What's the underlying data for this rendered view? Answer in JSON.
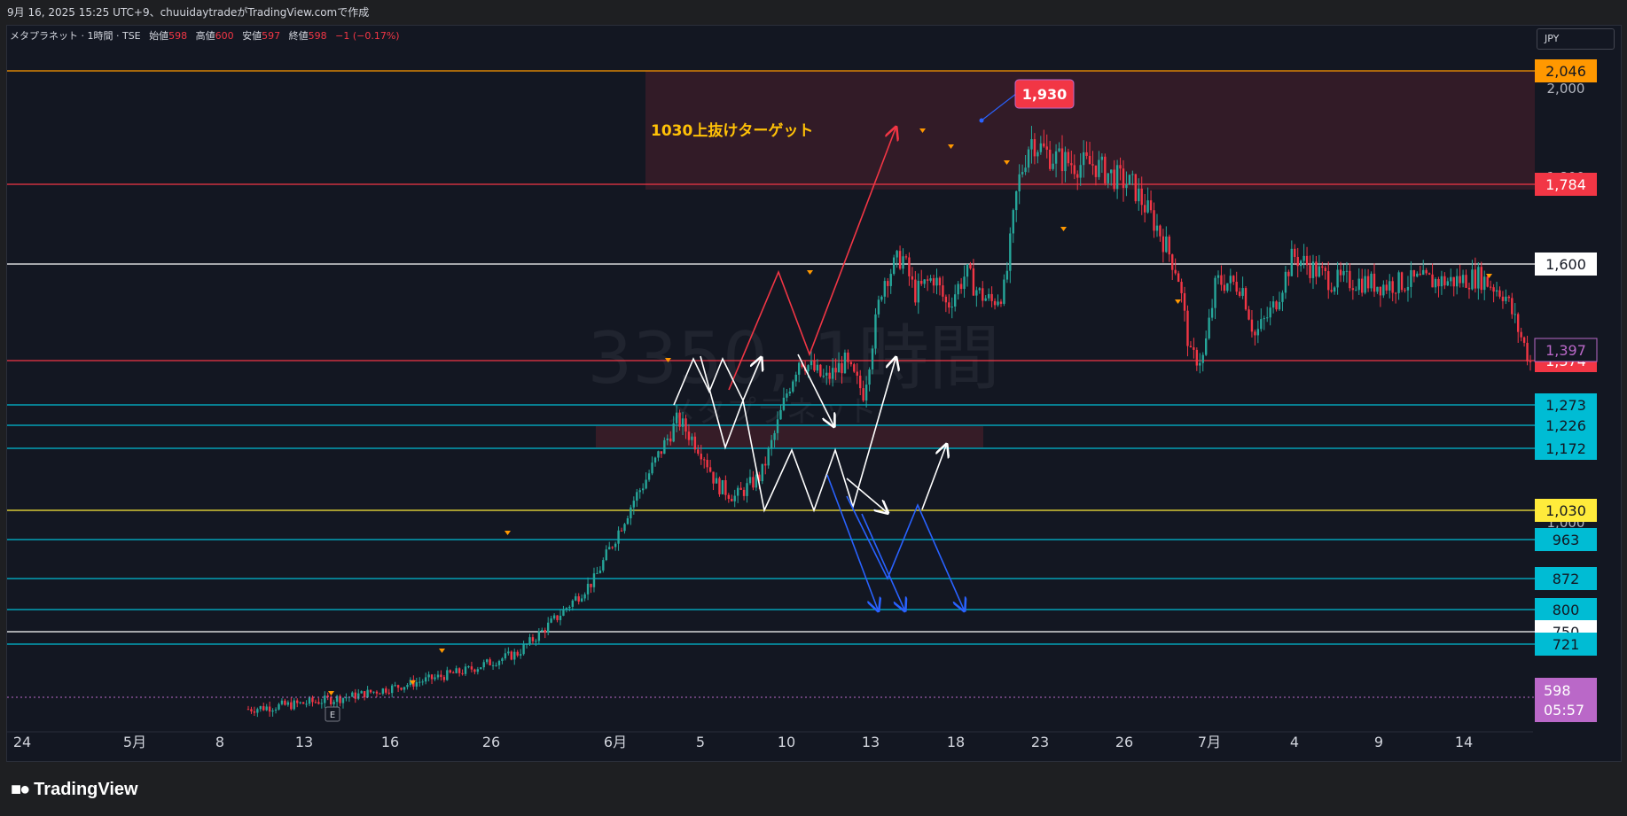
{
  "topbar": {
    "caption": "9月 16, 2025 15:25 UTC+9、chuuidaytradeがTradingView.comで作成"
  },
  "legend": {
    "symbol": "メタプラネット · 1時間 · TSE",
    "open_label": "始値",
    "open": "598",
    "high_label": "高値",
    "high": "600",
    "low_label": "安値",
    "low": "597",
    "close_label": "終値",
    "close": "598",
    "change": "−1 (−0.17%)"
  },
  "currency": "JPY",
  "watermark": {
    "line1": "3350, 1時間",
    "line2": "メタプラネット"
  },
  "annotation": {
    "target_text": "1030上抜けターゲット",
    "callout": "1,930"
  },
  "footer": {
    "logo_text": "TradingView"
  },
  "colors": {
    "background": "#131722",
    "up": "#26a69a",
    "down": "#f23645",
    "orange": "#ff9800",
    "cyan": "#00bcd4",
    "yellow": "#ffeb3b",
    "purple": "#ba68c8"
  },
  "chart_data": {
    "type": "candlestick",
    "y_axis": {
      "range": [
        520,
        2110
      ],
      "visible_ticks": [
        "2,000",
        "1,800",
        "1,000"
      ]
    },
    "x_axis": {
      "ticks": [
        "24",
        "5月",
        "8",
        "13",
        "16",
        "26",
        "6月",
        "5",
        "10",
        "13",
        "18",
        "23",
        "26",
        "7月",
        "4",
        "9",
        "14"
      ]
    },
    "price_lines": [
      {
        "label": "2,046",
        "value": 2046,
        "color": "#ff9800",
        "text_color": "#131722"
      },
      {
        "label": "1,784",
        "value": 1784,
        "color": "#f23645",
        "text_color": "#ffffff"
      },
      {
        "label": "1,600",
        "value": 1600,
        "color": "#ffffff",
        "text_color": "#131722"
      },
      {
        "label": "1,374",
        "value": 1374,
        "color": "#f23645",
        "text_color": "#ffffff"
      },
      {
        "label": "1,273",
        "value": 1273,
        "color": "#00bcd4",
        "text_color": "#131722"
      },
      {
        "label": "1,226",
        "value": 1226,
        "color": "#00bcd4",
        "text_color": "#131722"
      },
      {
        "label": "1,172",
        "value": 1172,
        "color": "#00bcd4",
        "text_color": "#131722"
      },
      {
        "label": "1,030",
        "value": 1030,
        "color": "#ffeb3b",
        "text_color": "#131722"
      },
      {
        "label": "963",
        "value": 963,
        "color": "#00bcd4",
        "text_color": "#131722"
      },
      {
        "label": "872",
        "value": 872,
        "color": "#00bcd4",
        "text_color": "#131722"
      },
      {
        "label": "800",
        "value": 800,
        "color": "#00bcd4",
        "text_color": "#131722"
      },
      {
        "label": "750",
        "value": 750,
        "color": "#ffffff",
        "text_color": "#131722"
      },
      {
        "label": "721",
        "value": 721,
        "color": "#00bcd4",
        "text_color": "#131722"
      }
    ],
    "marker_labels": [
      {
        "label": "1,397",
        "value": 1397,
        "color": "#ba68c8"
      }
    ],
    "last_price": {
      "value": "598",
      "countdown": "05:57",
      "color": "#ba68c8"
    },
    "price_path": [
      [
        0.0,
        575
      ],
      [
        0.04,
        585
      ],
      [
        0.08,
        600
      ],
      [
        0.12,
        625
      ],
      [
        0.17,
        660
      ],
      [
        0.21,
        700
      ],
      [
        0.24,
        780
      ],
      [
        0.27,
        870
      ],
      [
        0.3,
        1050
      ],
      [
        0.31,
        1100
      ],
      [
        0.335,
        1240
      ],
      [
        0.355,
        1160
      ],
      [
        0.365,
        1090
      ],
      [
        0.38,
        1060
      ],
      [
        0.4,
        1110
      ],
      [
        0.41,
        1200
      ],
      [
        0.42,
        1300
      ],
      [
        0.43,
        1380
      ],
      [
        0.45,
        1330
      ],
      [
        0.465,
        1370
      ],
      [
        0.48,
        1300
      ],
      [
        0.495,
        1560
      ],
      [
        0.51,
        1620
      ],
      [
        0.52,
        1530
      ],
      [
        0.535,
        1570
      ],
      [
        0.545,
        1500
      ],
      [
        0.56,
        1580
      ],
      [
        0.57,
        1530
      ],
      [
        0.58,
        1510
      ],
      [
        0.59,
        1540
      ],
      [
        0.6,
        1780
      ],
      [
        0.61,
        1890
      ],
      [
        0.625,
        1850
      ],
      [
        0.645,
        1830
      ],
      [
        0.66,
        1830
      ],
      [
        0.67,
        1810
      ],
      [
        0.69,
        1780
      ],
      [
        0.71,
        1680
      ],
      [
        0.725,
        1580
      ],
      [
        0.735,
        1380
      ],
      [
        0.745,
        1380
      ],
      [
        0.755,
        1560
      ],
      [
        0.775,
        1550
      ],
      [
        0.785,
        1430
      ],
      [
        0.8,
        1500
      ],
      [
        0.815,
        1620
      ],
      [
        0.83,
        1590
      ],
      [
        0.845,
        1560
      ],
      [
        0.865,
        1560
      ],
      [
        0.885,
        1550
      ],
      [
        0.91,
        1560
      ],
      [
        0.94,
        1560
      ],
      [
        0.96,
        1570
      ],
      [
        0.98,
        1530
      ],
      [
        1.0,
        1370
      ]
    ]
  }
}
